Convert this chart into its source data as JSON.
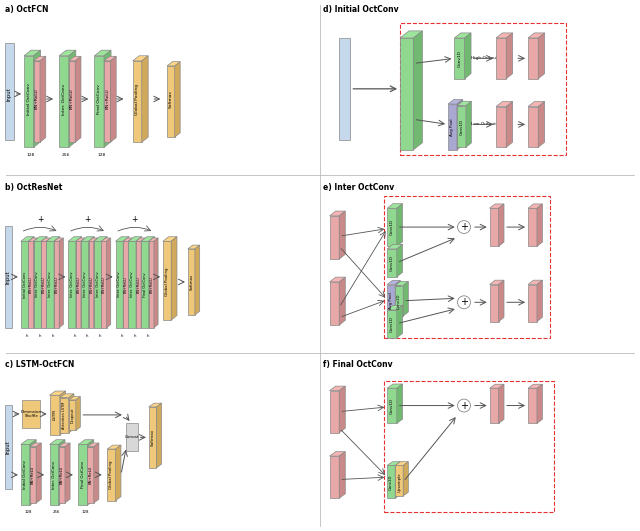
{
  "fig_width": 6.4,
  "fig_height": 5.31,
  "dpi": 100,
  "bg_color": "#ffffff",
  "colors": {
    "blue": "#c5d8ec",
    "green": "#90d890",
    "pink": "#e8a8a8",
    "orange": "#f0c87a",
    "purple": "#a8a8d0",
    "dashed_red": "#e83030",
    "arrow": "#555555",
    "gray_line": "#cccccc"
  },
  "panel_titles": [
    "a) OctFCN",
    "b) OctResNet",
    "c) LSTM-OctFCN",
    "d) Initial OctConv",
    "e) Inter OctConv",
    "f) Final OctConv"
  ]
}
